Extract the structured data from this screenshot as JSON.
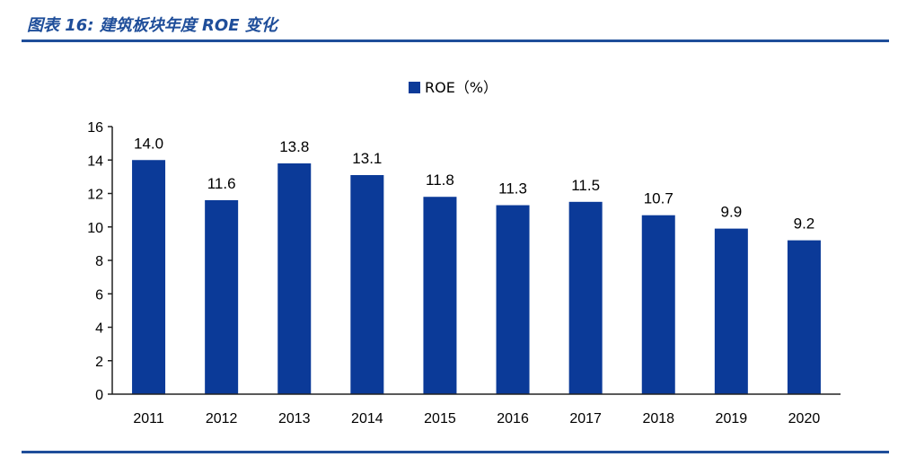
{
  "figure": {
    "title": "图表 16:  建筑板块年度 ROE 变化"
  },
  "colors": {
    "bar": "#0b3a98",
    "rule": "#1f4e9a",
    "axis": "#222222"
  },
  "chart_data": {
    "type": "bar",
    "categories": [
      "2011",
      "2012",
      "2013",
      "2014",
      "2015",
      "2016",
      "2017",
      "2018",
      "2019",
      "2020"
    ],
    "series": [
      {
        "name": "ROE（%）",
        "values": [
          14.0,
          11.6,
          13.8,
          13.1,
          11.8,
          11.3,
          11.5,
          10.7,
          9.9,
          9.2
        ]
      }
    ],
    "data_labels": [
      "14.0",
      "11.6",
      "13.8",
      "13.1",
      "11.8",
      "11.3",
      "11.5",
      "10.7",
      "9.9",
      "9.2"
    ],
    "yticks": [
      0,
      2,
      4,
      6,
      8,
      10,
      12,
      14,
      16
    ],
    "ylim": [
      0,
      16
    ],
    "xlabel": "",
    "ylabel": "",
    "legend_position": "top-center",
    "grid": false
  }
}
